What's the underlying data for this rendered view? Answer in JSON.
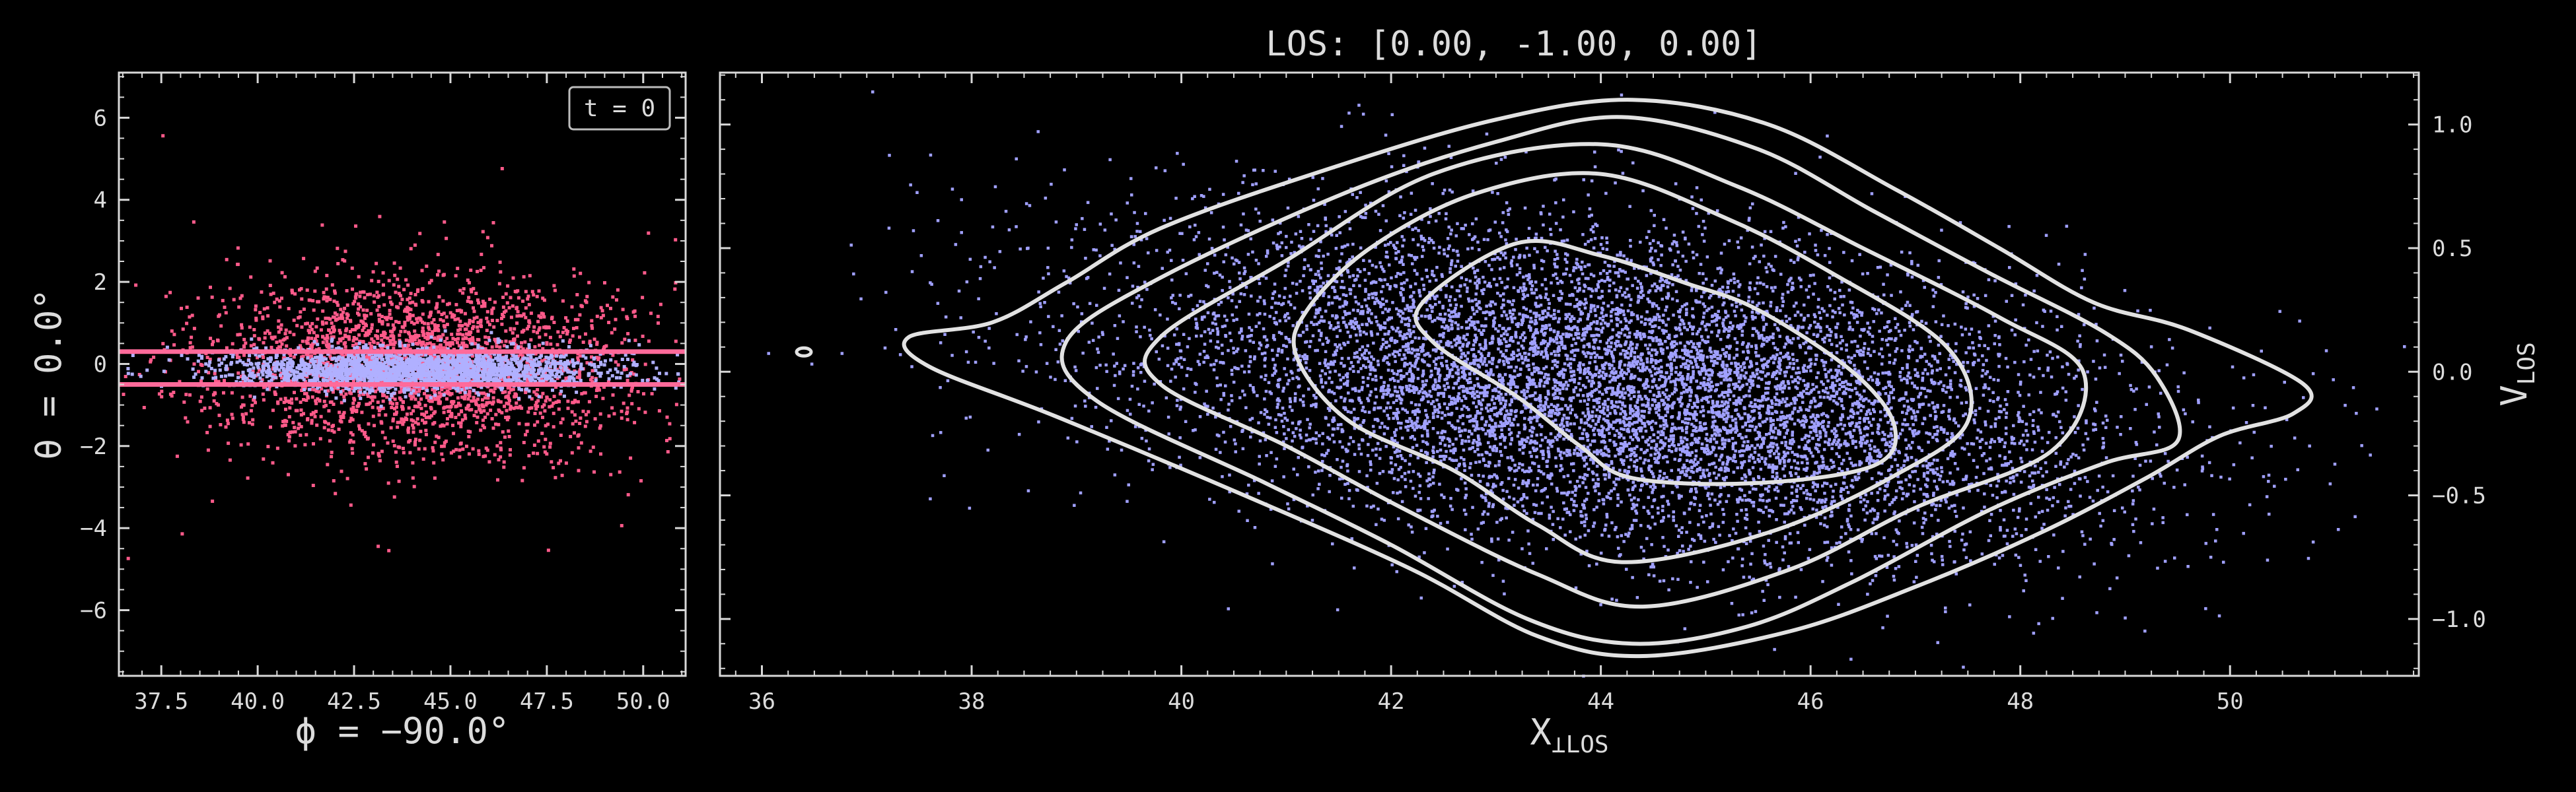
{
  "figure": {
    "background": "#000000",
    "axis_color": "#d8d8d8",
    "line_color": "#e0e0e0"
  },
  "chart_data": [
    {
      "type": "scatter",
      "name": "left-panel",
      "xlabel": "ϕ = −90.0°",
      "ylabel": "θ = 0.0°",
      "xlim": [
        36.4,
        51.1
      ],
      "ylim": [
        -7.6,
        7.1
      ],
      "xticks": [
        37.5,
        40.0,
        42.5,
        45.0,
        47.5,
        50.0
      ],
      "xtick_labels": [
        "37.5",
        "40.0",
        "42.5",
        "45.0",
        "47.5",
        "50.0"
      ],
      "yticks": [
        -6,
        -4,
        -2,
        0,
        2,
        4,
        6
      ],
      "ytick_labels": [
        "−6",
        "−4",
        "−2",
        "0",
        "2",
        "4",
        "6"
      ],
      "annotation": "t = 0",
      "annotation_position": "top-right",
      "hlines": [
        0.3,
        -0.5
      ],
      "hline_color": "#ff6a9a",
      "series": [
        {
          "color": "#ff5a8a",
          "x_center": 44.1,
          "x_sigma": 2.7,
          "y_center": 0.0,
          "y_sigma": 1.1,
          "count": 2600
        },
        {
          "color": "#b0b0ff",
          "x_center": 44.1,
          "x_sigma": 2.4,
          "y_center": -0.1,
          "y_sigma": 0.25,
          "count": 2200
        }
      ],
      "outliers": [
        {
          "x": 37.5,
          "y": 5.6
        },
        {
          "x": 46.3,
          "y": 4.8
        },
        {
          "x": 36.6,
          "y": -4.7
        },
        {
          "x": 38.0,
          "y": -4.1
        },
        {
          "x": 47.5,
          "y": -4.5
        },
        {
          "x": 49.4,
          "y": -3.9
        },
        {
          "x": 50.6,
          "y": -2.1
        },
        {
          "x": 42.5,
          "y": 3.4
        },
        {
          "x": 38.3,
          "y": 3.5
        },
        {
          "x": 44.8,
          "y": 3.5
        }
      ]
    },
    {
      "type": "scatter",
      "name": "right-panel",
      "title": "LOS: [0.00, -1.00, 0.00]",
      "xlabel": "X",
      "xlabel_sub": "⊥LOS",
      "ylabel": "V",
      "ylabel_sub": "LOS",
      "xlim": [
        35.6,
        51.8
      ],
      "ylim": [
        -1.23,
        1.21
      ],
      "xticks": [
        36,
        38,
        40,
        42,
        44,
        46,
        48,
        50
      ],
      "xtick_labels": [
        "36",
        "38",
        "40",
        "42",
        "44",
        "46",
        "48",
        "50"
      ],
      "yticks": [
        -1.0,
        -0.5,
        0.0,
        0.5,
        1.0
      ],
      "ytick_labels": [
        "−1.0",
        "−0.5",
        "0.0",
        "0.5",
        "1.0"
      ],
      "yaxis_side": "right",
      "point_color": "#a0a0ff",
      "distribution": {
        "x_center": 44.1,
        "x_sigma": 2.3,
        "y_center": -0.05,
        "y_sigma": 0.33,
        "correlation": -0.35,
        "count": 9000
      },
      "contours": [
        {
          "level": 1,
          "points": [
            [
              43.2,
              0.52
            ],
            [
              44.0,
              0.47
            ],
            [
              44.8,
              0.36
            ],
            [
              45.5,
              0.25
            ],
            [
              46.4,
              0.0
            ],
            [
              46.8,
              -0.22
            ],
            [
              46.6,
              -0.38
            ],
            [
              45.5,
              -0.45
            ],
            [
              44.3,
              -0.43
            ],
            [
              43.8,
              -0.3
            ],
            [
              43.2,
              -0.1
            ],
            [
              42.4,
              0.12
            ],
            [
              42.3,
              0.28
            ]
          ]
        },
        {
          "level": 2,
          "points": [
            [
              42.8,
              0.72
            ],
            [
              44.0,
              0.8
            ],
            [
              45.2,
              0.62
            ],
            [
              46.2,
              0.4
            ],
            [
              47.3,
              0.1
            ],
            [
              47.5,
              -0.2
            ],
            [
              46.8,
              -0.42
            ],
            [
              45.6,
              -0.65
            ],
            [
              44.2,
              -0.77
            ],
            [
              43.4,
              -0.62
            ],
            [
              42.6,
              -0.4
            ],
            [
              41.6,
              -0.2
            ],
            [
              41.1,
              0.06
            ],
            [
              41.2,
              0.25
            ],
            [
              41.8,
              0.5
            ]
          ]
        },
        {
          "level": 3,
          "points": [
            [
              42.4,
              0.8
            ],
            [
              44.0,
              0.92
            ],
            [
              45.3,
              0.75
            ],
            [
              46.5,
              0.5
            ],
            [
              47.8,
              0.22
            ],
            [
              48.6,
              0.0
            ],
            [
              48.3,
              -0.32
            ],
            [
              47.0,
              -0.55
            ],
            [
              45.8,
              -0.8
            ],
            [
              44.4,
              -0.95
            ],
            [
              43.4,
              -0.82
            ],
            [
              42.1,
              -0.55
            ],
            [
              41.0,
              -0.3
            ],
            [
              39.8,
              -0.05
            ],
            [
              39.8,
              0.14
            ],
            [
              41.0,
              0.45
            ]
          ]
        },
        {
          "level": 4,
          "points": [
            [
              41.6,
              0.73
            ],
            [
              43.0,
              0.93
            ],
            [
              44.2,
              1.03
            ],
            [
              45.5,
              0.9
            ],
            [
              46.6,
              0.65
            ],
            [
              47.7,
              0.4
            ],
            [
              48.8,
              0.16
            ],
            [
              49.3,
              -0.02
            ],
            [
              49.5,
              -0.28
            ],
            [
              48.8,
              -0.37
            ],
            [
              47.7,
              -0.56
            ],
            [
              46.4,
              -0.85
            ],
            [
              45.4,
              -1.03
            ],
            [
              44.3,
              -1.1
            ],
            [
              43.3,
              -1.0
            ],
            [
              42.0,
              -0.7
            ],
            [
              40.8,
              -0.45
            ],
            [
              39.2,
              -0.12
            ],
            [
              38.9,
              0.12
            ],
            [
              39.8,
              0.38
            ]
          ]
        },
        {
          "level": 5,
          "points": [
            [
              41.4,
              0.82
            ],
            [
              43.0,
              1.02
            ],
            [
              44.3,
              1.1
            ],
            [
              45.6,
              1.0
            ],
            [
              46.8,
              0.74
            ],
            [
              47.8,
              0.5
            ],
            [
              48.7,
              0.28
            ],
            [
              49.6,
              0.17
            ],
            [
              50.7,
              -0.05
            ],
            [
              50.6,
              -0.17
            ],
            [
              49.9,
              -0.26
            ],
            [
              49.2,
              -0.43
            ],
            [
              48.2,
              -0.65
            ],
            [
              47.0,
              -0.87
            ],
            [
              45.8,
              -1.05
            ],
            [
              44.4,
              -1.15
            ],
            [
              43.4,
              -1.07
            ],
            [
              42.2,
              -0.8
            ],
            [
              40.6,
              -0.5
            ],
            [
              38.8,
              -0.18
            ],
            [
              37.6,
              0.02
            ],
            [
              37.4,
              0.14
            ],
            [
              38.2,
              0.2
            ],
            [
              38.9,
              0.36
            ],
            [
              39.8,
              0.58
            ]
          ]
        }
      ],
      "outlier_contour": {
        "x": 36.4,
        "y": 0.08
      }
    }
  ]
}
